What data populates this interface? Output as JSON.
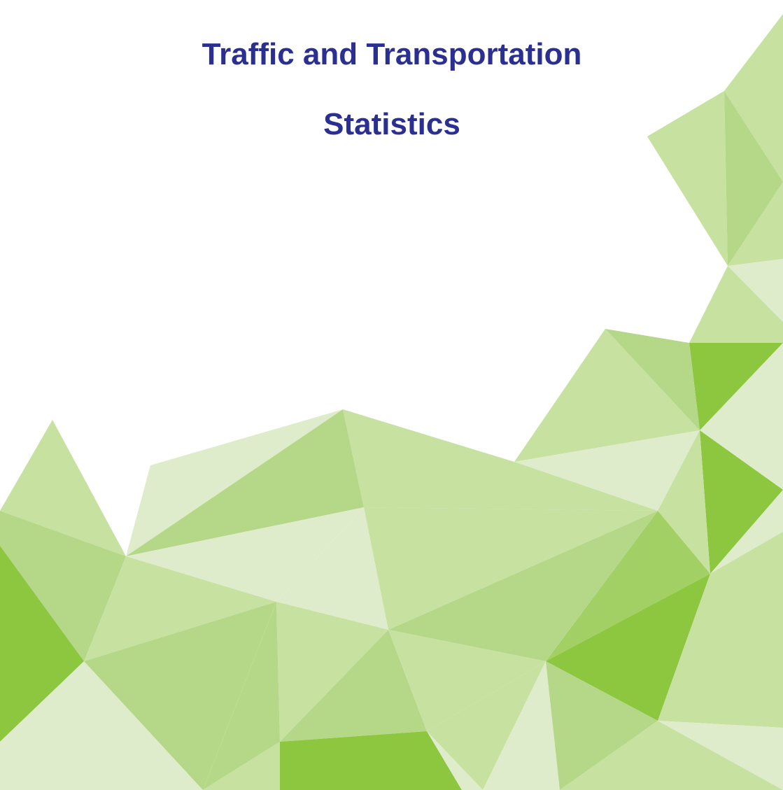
{
  "cover": {
    "title_lines": [
      "Traffic and Transportation",
      "Statistics"
    ]
  }
}
